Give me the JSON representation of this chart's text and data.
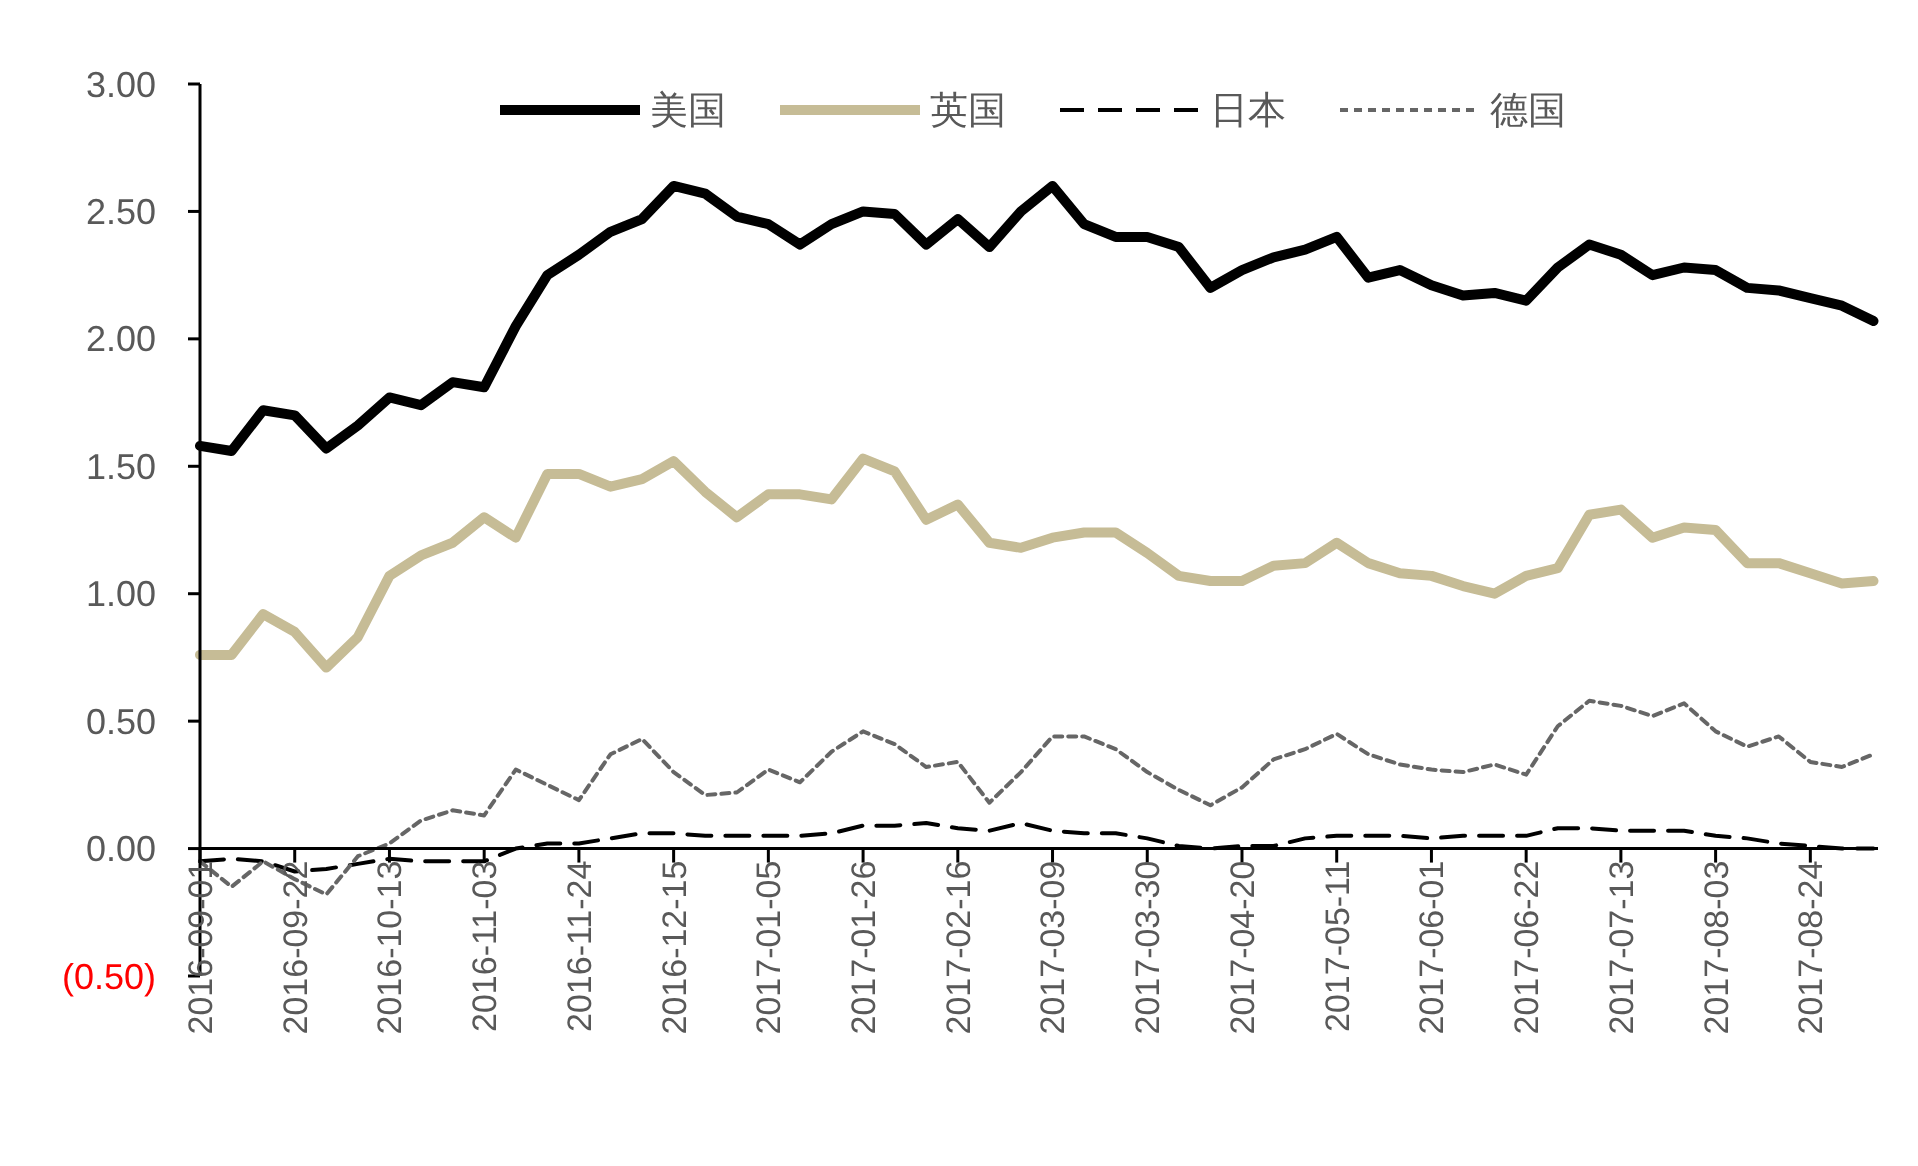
{
  "chart_data": {
    "type": "line",
    "x": [
      "2016-09-01",
      "2016-09-08",
      "2016-09-15",
      "2016-09-22",
      "2016-09-29",
      "2016-10-06",
      "2016-10-13",
      "2016-10-20",
      "2016-10-27",
      "2016-11-03",
      "2016-11-10",
      "2016-11-17",
      "2016-11-24",
      "2016-12-01",
      "2016-12-08",
      "2016-12-15",
      "2016-12-22",
      "2016-12-29",
      "2017-01-05",
      "2017-01-12",
      "2017-01-19",
      "2017-01-26",
      "2017-02-02",
      "2017-02-09",
      "2017-02-16",
      "2017-02-23",
      "2017-03-02",
      "2017-03-09",
      "2017-03-16",
      "2017-03-23",
      "2017-03-30",
      "2017-04-06",
      "2017-04-13",
      "2017-04-20",
      "2017-04-27",
      "2017-05-04",
      "2017-05-11",
      "2017-05-18",
      "2017-05-25",
      "2017-06-01",
      "2017-06-08",
      "2017-06-15",
      "2017-06-22",
      "2017-06-29",
      "2017-07-06",
      "2017-07-13",
      "2017-07-20",
      "2017-07-27",
      "2017-08-03",
      "2017-08-10",
      "2017-08-17",
      "2017-08-24",
      "2017-08-31",
      "2017-09-07"
    ],
    "series": [
      {
        "name": "美国",
        "color": "#000000",
        "line_style": "solid",
        "values": [
          1.58,
          1.56,
          1.72,
          1.7,
          1.57,
          1.66,
          1.77,
          1.74,
          1.83,
          1.81,
          2.05,
          2.25,
          2.33,
          2.42,
          2.47,
          2.6,
          2.57,
          2.48,
          2.45,
          2.37,
          2.45,
          2.5,
          2.49,
          2.37,
          2.47,
          2.36,
          2.5,
          2.6,
          2.45,
          2.4,
          2.4,
          2.36,
          2.2,
          2.27,
          2.32,
          2.35,
          2.4,
          2.24,
          2.27,
          2.21,
          2.17,
          2.18,
          2.15,
          2.28,
          2.37,
          2.33,
          2.25,
          2.28,
          2.27,
          2.2,
          2.19,
          2.16,
          2.13,
          2.07
        ]
      },
      {
        "name": "英国",
        "color": "#c6bc96",
        "line_style": "solid",
        "values": [
          0.76,
          0.76,
          0.92,
          0.85,
          0.71,
          0.83,
          1.07,
          1.15,
          1.2,
          1.3,
          1.22,
          1.47,
          1.47,
          1.42,
          1.45,
          1.52,
          1.4,
          1.3,
          1.39,
          1.39,
          1.37,
          1.53,
          1.48,
          1.29,
          1.35,
          1.2,
          1.18,
          1.22,
          1.24,
          1.24,
          1.16,
          1.07,
          1.05,
          1.05,
          1.11,
          1.12,
          1.2,
          1.12,
          1.08,
          1.07,
          1.03,
          1.0,
          1.07,
          1.1,
          1.31,
          1.33,
          1.22,
          1.26,
          1.25,
          1.12,
          1.12,
          1.08,
          1.04,
          1.05
        ]
      },
      {
        "name": "日本",
        "color": "#000000",
        "line_style": "dashed",
        "values": [
          -0.05,
          -0.04,
          -0.05,
          -0.09,
          -0.08,
          -0.06,
          -0.04,
          -0.05,
          -0.05,
          -0.05,
          0.0,
          0.02,
          0.02,
          0.04,
          0.06,
          0.06,
          0.05,
          0.05,
          0.05,
          0.05,
          0.06,
          0.09,
          0.09,
          0.1,
          0.08,
          0.07,
          0.1,
          0.07,
          0.06,
          0.06,
          0.04,
          0.01,
          0.0,
          0.01,
          0.01,
          0.04,
          0.05,
          0.05,
          0.05,
          0.04,
          0.05,
          0.05,
          0.05,
          0.08,
          0.08,
          0.07,
          0.07,
          0.07,
          0.05,
          0.04,
          0.02,
          0.01,
          0.0,
          0.0
        ]
      },
      {
        "name": "德国",
        "color": "#666666",
        "line_style": "dotted",
        "values": [
          -0.05,
          -0.15,
          -0.05,
          -0.12,
          -0.18,
          -0.03,
          0.02,
          0.11,
          0.15,
          0.13,
          0.31,
          0.25,
          0.19,
          0.37,
          0.43,
          0.3,
          0.21,
          0.22,
          0.31,
          0.26,
          0.38,
          0.46,
          0.41,
          0.32,
          0.34,
          0.18,
          0.3,
          0.44,
          0.44,
          0.39,
          0.3,
          0.23,
          0.17,
          0.24,
          0.35,
          0.39,
          0.45,
          0.37,
          0.33,
          0.31,
          0.3,
          0.33,
          0.29,
          0.48,
          0.58,
          0.56,
          0.52,
          0.57,
          0.46,
          0.4,
          0.44,
          0.34,
          0.32,
          0.37
        ]
      }
    ],
    "xlim": [
      "2016-09-01",
      "2017-09-08"
    ],
    "xticks": [
      "2016-09-01",
      "2016-09-22",
      "2016-10-13",
      "2016-11-03",
      "2016-11-24",
      "2016-12-15",
      "2017-01-05",
      "2017-01-26",
      "2017-02-16",
      "2017-03-09",
      "2017-03-30",
      "2017-04-20",
      "2017-05-11",
      "2017-06-01",
      "2017-06-22",
      "2017-07-13",
      "2017-08-03",
      "2017-08-24"
    ],
    "ylim": [
      -0.5,
      3
    ],
    "yticks": [
      {
        "value": 3,
        "label": "3.00"
      },
      {
        "value": 2.5,
        "label": "2.50"
      },
      {
        "value": 2,
        "label": "2.00"
      },
      {
        "value": 1.5,
        "label": "1.50"
      },
      {
        "value": 1,
        "label": "1.00"
      },
      {
        "value": 0.5,
        "label": "0.50"
      },
      {
        "value": 0,
        "label": "0.00"
      },
      {
        "value": -0.5,
        "label": "(0.50)"
      }
    ],
    "grid": false,
    "legend": "top",
    "marker": "none"
  }
}
